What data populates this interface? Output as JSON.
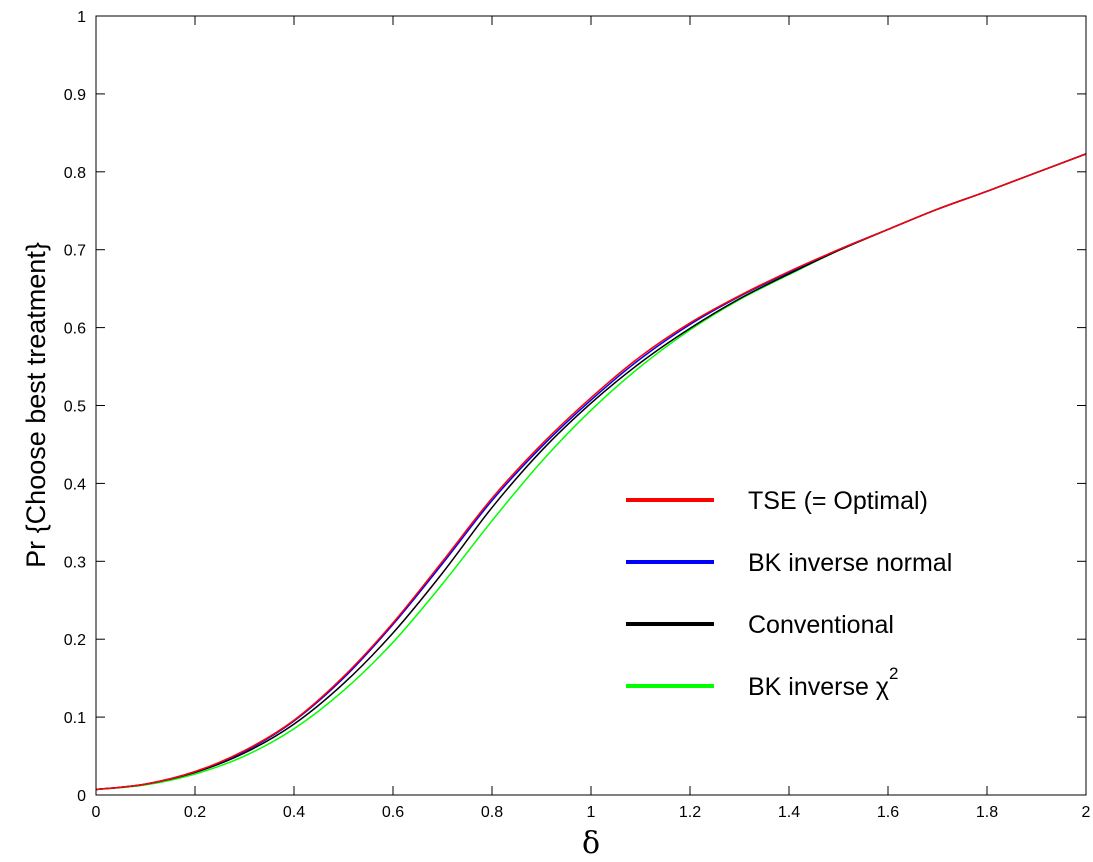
{
  "chart_data": {
    "type": "line",
    "xlabel": "δ",
    "ylabel": "Pr {Choose best treatment}",
    "xlim": [
      0,
      2
    ],
    "ylim": [
      0,
      1
    ],
    "xticks": [
      0,
      0.2,
      0.4,
      0.6,
      0.8,
      1,
      1.2,
      1.4,
      1.6,
      1.8,
      2
    ],
    "xtick_labels": [
      "0",
      "0.2",
      "0.4",
      "0.6",
      "0.8",
      "1",
      "1.2",
      "1.4",
      "1.6",
      "1.8",
      "2"
    ],
    "yticks": [
      0,
      0.1,
      0.2,
      0.3,
      0.4,
      0.5,
      0.6,
      0.7,
      0.8,
      0.9,
      1
    ],
    "ytick_labels": [
      "0",
      "0.1",
      "0.2",
      "0.3",
      "0.4",
      "0.5",
      "0.6",
      "0.7",
      "0.8",
      "0.9",
      "1"
    ],
    "grid": false,
    "legend_position": "lower-right",
    "x": [
      0,
      0.1,
      0.2,
      0.3,
      0.4,
      0.5,
      0.6,
      0.7,
      0.8,
      0.9,
      1.0,
      1.1,
      1.2,
      1.3,
      1.4,
      1.5,
      1.6,
      1.7,
      1.8,
      1.9,
      2.0
    ],
    "series": [
      {
        "name": "TSE (= Optimal)",
        "color": "#ff0000",
        "values": [
          0.007,
          0.014,
          0.03,
          0.057,
          0.096,
          0.152,
          0.221,
          0.3,
          0.381,
          0.45,
          0.51,
          0.563,
          0.606,
          0.641,
          0.672,
          0.7,
          0.726,
          0.752,
          0.775,
          0.799,
          0.823
        ]
      },
      {
        "name": "BK inverse normal",
        "color": "#0000ff",
        "values": [
          0.007,
          0.014,
          0.03,
          0.056,
          0.095,
          0.15,
          0.219,
          0.297,
          0.378,
          0.447,
          0.507,
          0.56,
          0.604,
          0.64,
          0.671,
          0.7,
          0.726,
          0.752,
          0.775,
          0.799,
          0.823
        ]
      },
      {
        "name": "Conventional",
        "color": "#000000",
        "values": [
          0.007,
          0.014,
          0.029,
          0.054,
          0.091,
          0.143,
          0.208,
          0.285,
          0.369,
          0.442,
          0.503,
          0.555,
          0.599,
          0.637,
          0.669,
          0.699,
          0.726,
          0.752,
          0.775,
          0.799,
          0.823
        ]
      },
      {
        "name": "BK inverse χ²",
        "label_main": "BK inverse χ",
        "label_sup": "2",
        "color": "#00ff00",
        "values": [
          0.007,
          0.013,
          0.027,
          0.05,
          0.085,
          0.134,
          0.196,
          0.271,
          0.352,
          0.428,
          0.494,
          0.55,
          0.597,
          0.636,
          0.668,
          0.699,
          0.726,
          0.752,
          0.775,
          0.799,
          0.823
        ]
      }
    ]
  }
}
